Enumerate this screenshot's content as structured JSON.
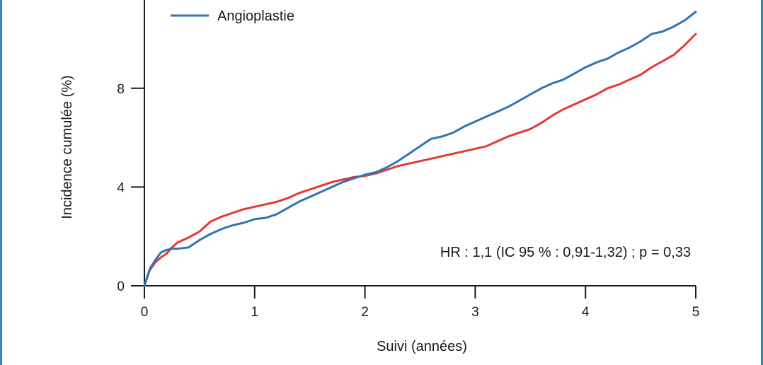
{
  "chart_data": {
    "type": "line",
    "title": "",
    "xlabel": "Suivi (années)",
    "ylabel": "Incidence cumulée (%)",
    "xlim": [
      0,
      5
    ],
    "ylim": [
      0,
      11.5
    ],
    "x_ticks": [
      0,
      1,
      2,
      3,
      4,
      5
    ],
    "y_ticks": [
      0,
      4,
      8
    ],
    "grid": false,
    "legend_position": "top-left",
    "legend_entries": [
      "Angioplastie"
    ],
    "annotation": "HR : 1,1 (IC 95 % : 0,91-1,32) ; p = 0,33",
    "series": [
      {
        "name": "Angioplastie",
        "color": "#2e75b6",
        "x": [
          0,
          0.05,
          0.1,
          0.15,
          0.2,
          0.25,
          0.3,
          0.4,
          0.5,
          0.6,
          0.7,
          0.8,
          0.9,
          1.0,
          1.1,
          1.2,
          1.3,
          1.4,
          1.5,
          1.6,
          1.7,
          1.8,
          1.9,
          2.0,
          2.1,
          2.2,
          2.3,
          2.4,
          2.5,
          2.6,
          2.7,
          2.8,
          2.9,
          3.0,
          3.1,
          3.2,
          3.3,
          3.4,
          3.5,
          3.6,
          3.7,
          3.8,
          3.9,
          4.0,
          4.1,
          4.2,
          4.3,
          4.4,
          4.5,
          4.6,
          4.7,
          4.8,
          4.9,
          5.0
        ],
        "y": [
          0,
          0.7,
          1.05,
          1.35,
          1.45,
          1.5,
          1.5,
          1.55,
          1.85,
          2.1,
          2.3,
          2.45,
          2.55,
          2.7,
          2.75,
          2.9,
          3.15,
          3.4,
          3.6,
          3.8,
          4.0,
          4.2,
          4.35,
          4.5,
          4.6,
          4.8,
          5.05,
          5.35,
          5.65,
          5.95,
          6.05,
          6.2,
          6.45,
          6.65,
          6.85,
          7.05,
          7.25,
          7.5,
          7.75,
          8.0,
          8.2,
          8.35,
          8.6,
          8.85,
          9.05,
          9.2,
          9.45,
          9.65,
          9.9,
          10.2,
          10.3,
          10.5,
          10.75,
          11.1
        ]
      },
      {
        "name": "",
        "color": "#e53935",
        "x": [
          0,
          0.05,
          0.1,
          0.15,
          0.2,
          0.25,
          0.3,
          0.4,
          0.5,
          0.6,
          0.7,
          0.8,
          0.9,
          1.0,
          1.1,
          1.2,
          1.3,
          1.4,
          1.5,
          1.6,
          1.7,
          1.8,
          1.9,
          2.0,
          2.1,
          2.2,
          2.3,
          2.4,
          2.5,
          2.6,
          2.7,
          2.8,
          2.9,
          3.0,
          3.1,
          3.2,
          3.3,
          3.4,
          3.5,
          3.6,
          3.7,
          3.8,
          3.9,
          4.0,
          4.1,
          4.2,
          4.3,
          4.4,
          4.5,
          4.6,
          4.7,
          4.8,
          4.9,
          5.0
        ],
        "y": [
          0,
          0.65,
          0.95,
          1.15,
          1.3,
          1.55,
          1.75,
          1.95,
          2.2,
          2.6,
          2.8,
          2.95,
          3.1,
          3.2,
          3.3,
          3.4,
          3.55,
          3.75,
          3.9,
          4.05,
          4.2,
          4.3,
          4.4,
          4.45,
          4.55,
          4.7,
          4.85,
          4.95,
          5.05,
          5.15,
          5.25,
          5.35,
          5.45,
          5.55,
          5.65,
          5.85,
          6.05,
          6.2,
          6.35,
          6.6,
          6.9,
          7.15,
          7.35,
          7.55,
          7.75,
          8.0,
          8.15,
          8.35,
          8.55,
          8.85,
          9.1,
          9.35,
          9.75,
          10.2
        ]
      }
    ]
  }
}
